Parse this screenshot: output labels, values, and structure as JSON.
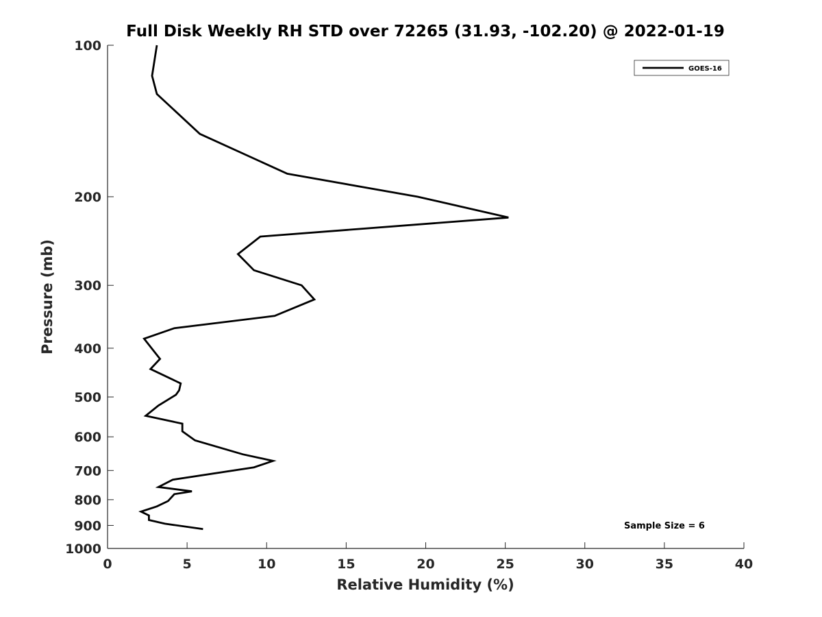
{
  "chart_data": {
    "type": "line",
    "title": "Full Disk Weekly RH STD over 72265 (31.93, -102.20) @ 2022-01-19",
    "xlabel": "Relative Humidity (%)",
    "ylabel": "Pressure (mb)",
    "xlim": [
      0,
      40
    ],
    "ylim": [
      1000,
      100
    ],
    "y_scale": "log",
    "y_reversed": true,
    "x_ticks": [
      0,
      5,
      10,
      15,
      20,
      25,
      30,
      35,
      40
    ],
    "y_ticks": [
      100,
      200,
      300,
      400,
      500,
      600,
      700,
      800,
      900,
      1000
    ],
    "grid": false,
    "legend_position": "top-right",
    "annotation": "Sample Size = 6",
    "series": [
      {
        "name": "GOES-16",
        "color": "#000000",
        "points": [
          [
            3.1,
            100
          ],
          [
            2.8,
            115
          ],
          [
            3.1,
            125
          ],
          [
            5.8,
            150
          ],
          [
            11.3,
            180
          ],
          [
            19.5,
            200
          ],
          [
            25.2,
            220
          ],
          [
            9.6,
            240
          ],
          [
            8.2,
            260
          ],
          [
            9.2,
            280
          ],
          [
            12.2,
            300
          ],
          [
            13.0,
            320
          ],
          [
            10.5,
            345
          ],
          [
            4.2,
            365
          ],
          [
            2.3,
            383
          ],
          [
            2.9,
            405
          ],
          [
            3.3,
            420
          ],
          [
            2.7,
            440
          ],
          [
            4.6,
            470
          ],
          [
            4.5,
            485
          ],
          [
            4.3,
            495
          ],
          [
            3.2,
            520
          ],
          [
            2.4,
            545
          ],
          [
            4.7,
            565
          ],
          [
            4.7,
            585
          ],
          [
            5.5,
            610
          ],
          [
            8.5,
            650
          ],
          [
            10.4,
            670
          ],
          [
            9.2,
            690
          ],
          [
            4.1,
            730
          ],
          [
            3.2,
            755
          ],
          [
            5.3,
            770
          ],
          [
            4.2,
            780
          ],
          [
            3.8,
            805
          ],
          [
            3.1,
            825
          ],
          [
            2.1,
            845
          ],
          [
            2.6,
            860
          ],
          [
            2.6,
            878
          ],
          [
            3.6,
            893
          ],
          [
            6.0,
            915
          ]
        ]
      }
    ]
  }
}
